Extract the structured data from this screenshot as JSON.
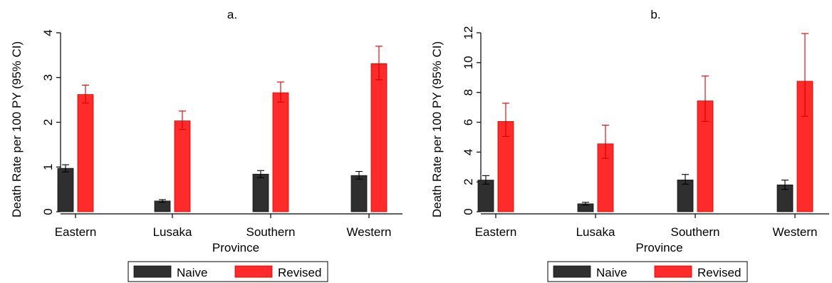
{
  "chart_data": [
    {
      "type": "bar",
      "title": "a.",
      "xlabel": "Province",
      "ylabel": "Death Rate per 100 PY (95% CI)",
      "ylim": [
        0,
        4
      ],
      "yticks": [
        0,
        1,
        2,
        3,
        4
      ],
      "categories": [
        "Eastern",
        "Lusaka",
        "Southern",
        "Western"
      ],
      "series": [
        {
          "name": "Naive",
          "color": "#2f2f2f",
          "values": [
            0.97,
            0.24,
            0.84,
            0.81
          ],
          "ci_low": [
            0.89,
            0.21,
            0.76,
            0.73
          ],
          "ci_high": [
            1.05,
            0.27,
            0.92,
            0.9
          ]
        },
        {
          "name": "Revised",
          "color": "#ff2a2a",
          "values": [
            2.62,
            2.03,
            2.66,
            3.31
          ],
          "ci_low": [
            2.43,
            1.84,
            2.45,
            2.95
          ],
          "ci_high": [
            2.83,
            2.25,
            2.9,
            3.7
          ]
        }
      ],
      "legend_position": "bottom",
      "grid": false
    },
    {
      "type": "bar",
      "title": "b.",
      "xlabel": "Province",
      "ylabel": "Death Rate per 100 PY (95% CI)",
      "ylim": [
        0,
        12
      ],
      "yticks": [
        0,
        2,
        4,
        6,
        8,
        10,
        12
      ],
      "categories": [
        "Eastern",
        "Lusaka",
        "Southern",
        "Western"
      ],
      "series": [
        {
          "name": "Naive",
          "color": "#2f2f2f",
          "values": [
            2.12,
            0.53,
            2.13,
            1.8
          ],
          "ci_low": [
            1.85,
            0.45,
            1.85,
            1.5
          ],
          "ci_high": [
            2.42,
            0.63,
            2.5,
            2.12
          ]
        },
        {
          "name": "Revised",
          "color": "#ff2a2a",
          "values": [
            6.05,
            4.55,
            7.43,
            8.75
          ],
          "ci_low": [
            5.05,
            3.58,
            6.05,
            6.4
          ],
          "ci_high": [
            7.28,
            5.8,
            9.1,
            11.95
          ]
        }
      ],
      "legend_position": "bottom",
      "grid": false
    }
  ]
}
